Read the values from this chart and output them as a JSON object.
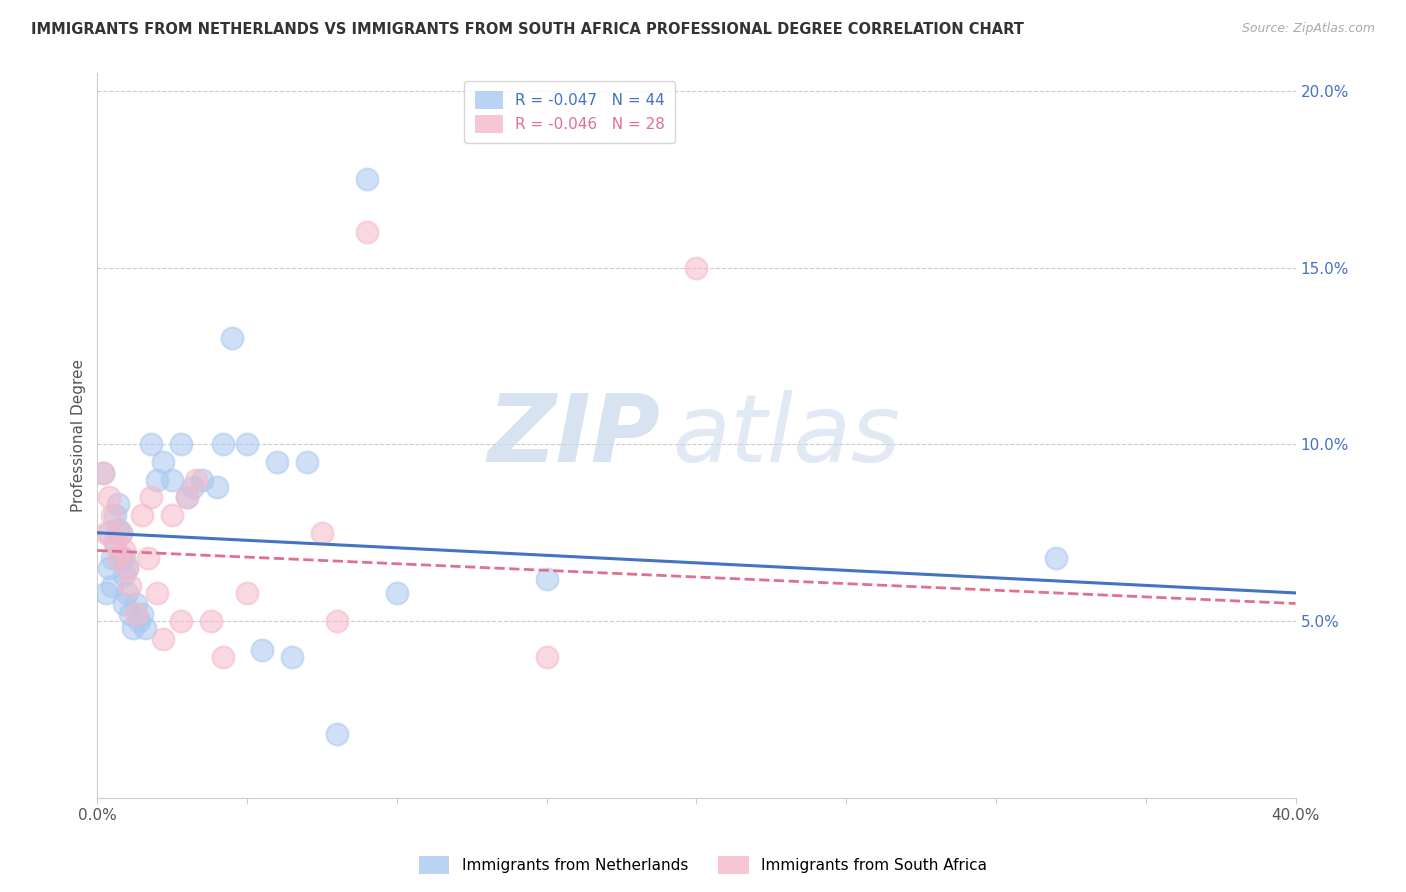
{
  "title": "IMMIGRANTS FROM NETHERLANDS VS IMMIGRANTS FROM SOUTH AFRICA PROFESSIONAL DEGREE CORRELATION CHART",
  "source": "Source: ZipAtlas.com",
  "ylabel": "Professional Degree",
  "xlim": [
    0.0,
    0.4
  ],
  "ylim": [
    0.0,
    0.205
  ],
  "xticks": [
    0.0,
    0.05,
    0.1,
    0.15,
    0.2,
    0.25,
    0.3,
    0.35,
    0.4
  ],
  "xtick_labels": [
    "0.0%",
    "",
    "",
    "",
    "",
    "",
    "",
    "",
    "40.0%"
  ],
  "yticks_right": [
    0.05,
    0.1,
    0.15,
    0.2
  ],
  "ytick_labels_right": [
    "5.0%",
    "10.0%",
    "15.0%",
    "20.0%"
  ],
  "netherlands_color": "#a8c8f0",
  "south_africa_color": "#f5b8c8",
  "legend_label_1": "R = -0.047   N = 44",
  "legend_label_2": "R = -0.046   N = 28",
  "watermark_zip": "ZIP",
  "watermark_atlas": "atlas",
  "nl_line_color": "#4472c4",
  "sa_line_color": "#e07090",
  "netherlands_x": [
    0.002,
    0.003,
    0.004,
    0.004,
    0.005,
    0.005,
    0.006,
    0.006,
    0.007,
    0.007,
    0.008,
    0.008,
    0.009,
    0.009,
    0.009,
    0.01,
    0.01,
    0.011,
    0.012,
    0.013,
    0.014,
    0.015,
    0.016,
    0.018,
    0.02,
    0.022,
    0.025,
    0.028,
    0.03,
    0.032,
    0.035,
    0.04,
    0.042,
    0.045,
    0.05,
    0.055,
    0.06,
    0.065,
    0.07,
    0.08,
    0.09,
    0.1,
    0.15,
    0.32
  ],
  "netherlands_y": [
    0.092,
    0.058,
    0.075,
    0.065,
    0.06,
    0.068,
    0.08,
    0.072,
    0.083,
    0.076,
    0.075,
    0.068,
    0.068,
    0.063,
    0.055,
    0.065,
    0.058,
    0.052,
    0.048,
    0.055,
    0.05,
    0.052,
    0.048,
    0.1,
    0.09,
    0.095,
    0.09,
    0.1,
    0.085,
    0.088,
    0.09,
    0.088,
    0.1,
    0.13,
    0.1,
    0.042,
    0.095,
    0.04,
    0.095,
    0.018,
    0.175,
    0.058,
    0.062,
    0.068
  ],
  "south_africa_x": [
    0.002,
    0.003,
    0.004,
    0.005,
    0.006,
    0.007,
    0.008,
    0.009,
    0.01,
    0.011,
    0.013,
    0.015,
    0.017,
    0.018,
    0.02,
    0.022,
    0.025,
    0.028,
    0.03,
    0.033,
    0.038,
    0.042,
    0.05,
    0.075,
    0.08,
    0.09,
    0.15,
    0.2
  ],
  "south_africa_y": [
    0.092,
    0.075,
    0.085,
    0.08,
    0.072,
    0.068,
    0.075,
    0.07,
    0.065,
    0.06,
    0.052,
    0.08,
    0.068,
    0.085,
    0.058,
    0.045,
    0.08,
    0.05,
    0.085,
    0.09,
    0.05,
    0.04,
    0.058,
    0.075,
    0.05,
    0.16,
    0.04,
    0.15
  ],
  "nl_trend_x0": 0.0,
  "nl_trend_y0": 0.075,
  "nl_trend_x1": 0.4,
  "nl_trend_y1": 0.058,
  "sa_trend_x0": 0.0,
  "sa_trend_y0": 0.07,
  "sa_trend_x1": 0.4,
  "sa_trend_y1": 0.055
}
